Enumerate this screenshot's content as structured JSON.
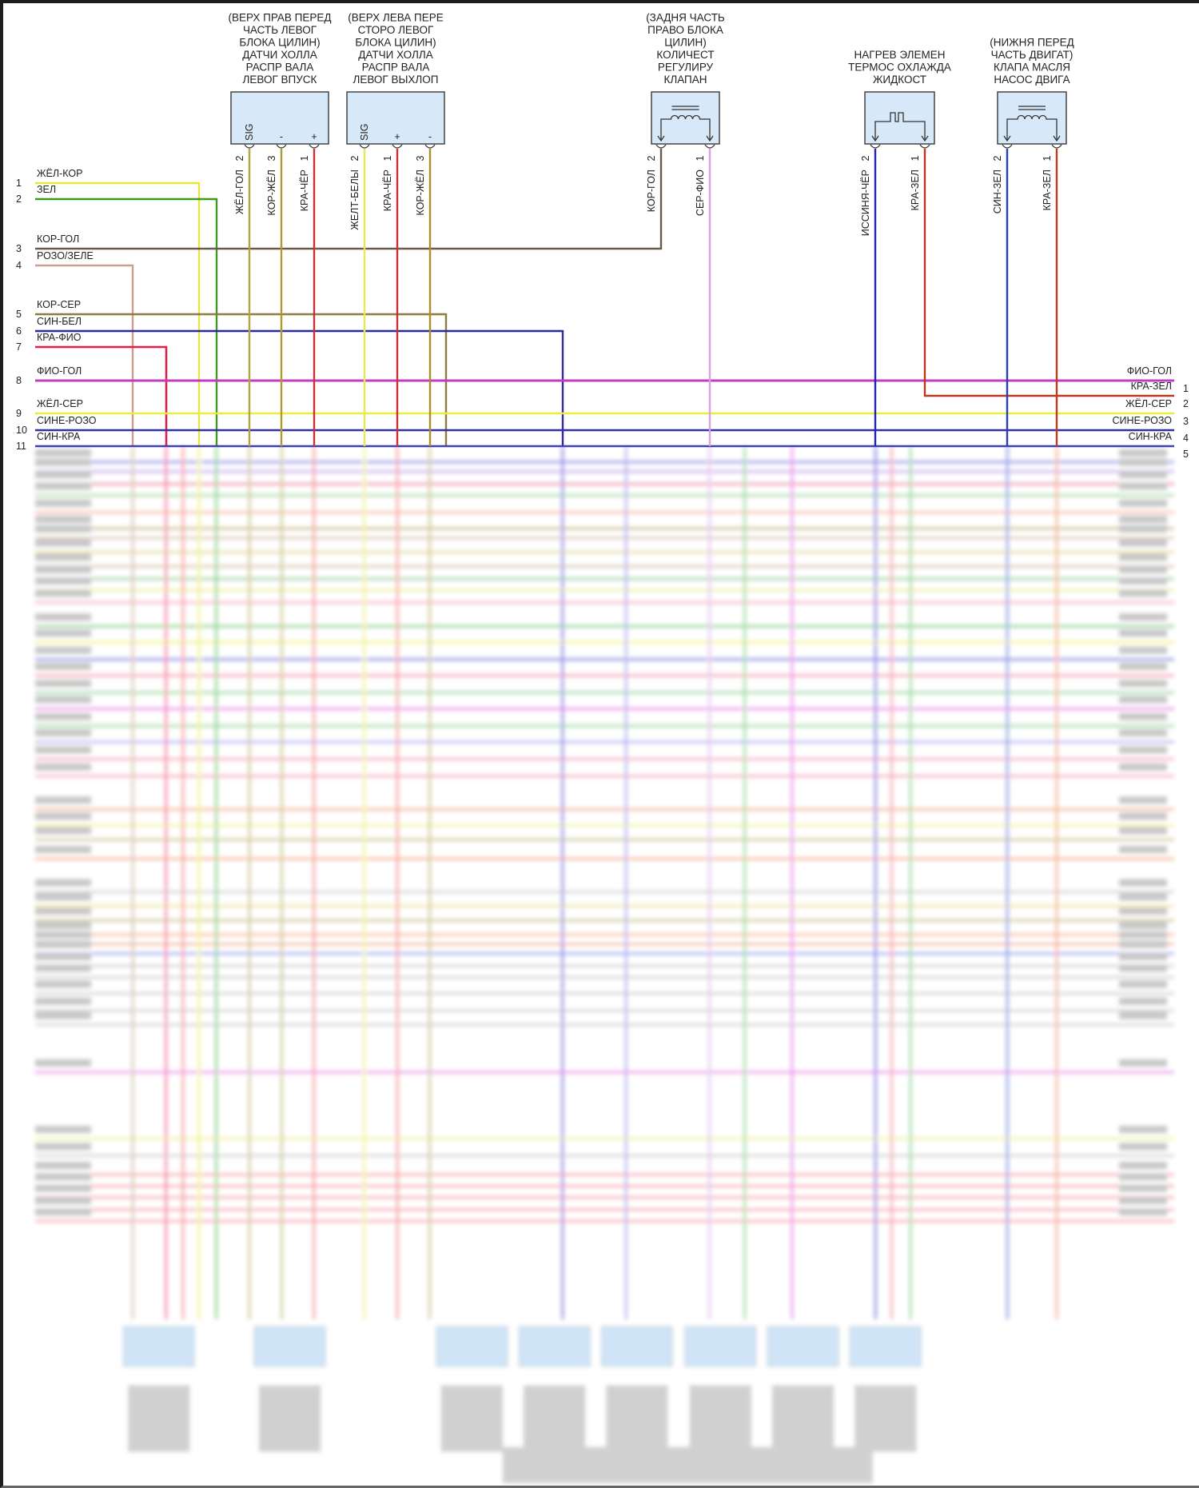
{
  "connectors": [
    {
      "id": "cam-sensor-left-intake",
      "title_lines": [
        "(ВЕРХ ПРАВ ПЕРЕД",
        "ЧАСТЬ ЛЕВОГ",
        "БЛОКА ЦИЛИН)",
        "ДАТЧИ ХОЛЛА",
        "РАСПР ВАЛА",
        "ЛЕВОГ ВПУСК"
      ],
      "symbol": "hall-sensor",
      "pins": [
        {
          "pin": "2",
          "func": "SIG",
          "wire": "ЖЁЛ-ГОЛ",
          "color": "#b3a43c"
        },
        {
          "pin": "3",
          "func": "-",
          "wire": "КОР-ЖЁЛ",
          "color": "#b09a2a"
        },
        {
          "pin": "1",
          "func": "+",
          "wire": "КРА-ЧЁР",
          "color": "#c83232"
        }
      ]
    },
    {
      "id": "cam-sensor-left-exhaust",
      "title_lines": [
        "(ВЕРХ ЛЕВА ПЕРЕ",
        "СТОРО ЛЕВОГ",
        "БЛОКА ЦИЛИН)",
        "ДАТЧИ ХОЛЛА",
        "РАСПР ВАЛА",
        "ЛЕВОГ ВЫХЛОП"
      ],
      "symbol": "hall-sensor",
      "pins": [
        {
          "pin": "2",
          "func": "SIG",
          "wire": "ЖЕЛТ-БЕЛЫ",
          "color": "#e8e850"
        },
        {
          "pin": "1",
          "func": "+",
          "wire": "КРА-ЧЁР",
          "color": "#c83232"
        },
        {
          "pin": "3",
          "func": "-",
          "wire": "КОР-ЖЁЛ",
          "color": "#a8902c"
        }
      ]
    },
    {
      "id": "volume-control-valve",
      "title_lines": [
        "(ЗАДНЯ ЧАСТЬ",
        "ПРАВО БЛОКА",
        "ЦИЛИН)",
        "КОЛИЧЕСТ",
        "РЕГУЛИРУ",
        "КЛАПАН"
      ],
      "symbol": "solenoid-coil",
      "pins": [
        {
          "pin": "2",
          "func": "",
          "wire": "КОР-ГОЛ",
          "color": "#6b5a48"
        },
        {
          "pin": "1",
          "func": "",
          "wire": "СЕР-ФИО",
          "color": "#d8a2e2"
        }
      ]
    },
    {
      "id": "thermostat-heater",
      "title_lines": [
        "НАГРЕВ ЭЛЕМЕН",
        "ТЕРМОС ОХЛАЖДА",
        "ЖИДКОСТ"
      ],
      "symbol": "heater-element",
      "pins": [
        {
          "pin": "2",
          "func": "",
          "wire": "ИССИНЯ-ЧЁР",
          "color": "#2424b0"
        },
        {
          "pin": "1",
          "func": "",
          "wire": "КРА-ЗЕЛ",
          "color": "#b83a1c"
        }
      ]
    },
    {
      "id": "oil-pump-valve",
      "title_lines": [
        "(НИЖНЯ ПЕРЕД",
        "ЧАСТЬ ДВИГАТ)",
        "КЛАПА МАСЛЯ",
        "НАСОС ДВИГА"
      ],
      "symbol": "solenoid-coil",
      "pins": [
        {
          "pin": "2",
          "func": "",
          "wire": "СИН-ЗЕЛ",
          "color": "#2a40b0"
        },
        {
          "pin": "1",
          "func": "",
          "wire": "КРА-ЗЕЛ",
          "color": "#c03a1c"
        }
      ]
    }
  ],
  "left_rows": [
    {
      "num": "1",
      "label": "ЖЁЛ-КОР",
      "color": "#e6e63c"
    },
    {
      "num": "2",
      "label": "ЗЕЛ",
      "color": "#3c9a1c"
    },
    {
      "num": "3",
      "label": "КОР-ГОЛ",
      "color": "#6b5a48"
    },
    {
      "num": "4",
      "label": "РОЗО/ЗЕЛЕ",
      "color": "#c9a08c"
    },
    {
      "num": "5",
      "label": "КОР-СЕР",
      "color": "#8c7c44"
    },
    {
      "num": "6",
      "label": "СИН-БЕЛ",
      "color": "#2a2a9a"
    },
    {
      "num": "7",
      "label": "КРА-ФИО",
      "color": "#e0204a"
    },
    {
      "num": "8",
      "label": "ФИО-ГОЛ",
      "color": "#c03cc0"
    },
    {
      "num": "9",
      "label": "ЖЁЛ-СЕР",
      "color": "#ecec40"
    },
    {
      "num": "10",
      "label": "СИНЕ-РОЗО",
      "color": "#3030a0"
    },
    {
      "num": "11",
      "label": "СИН-КРА",
      "color": "#4040b0"
    }
  ],
  "right_rows": [
    {
      "num": "1",
      "label": "ФИО-ГОЛ"
    },
    {
      "num": "2",
      "label": "КРА-ЗЕЛ"
    },
    {
      "num": "3",
      "label": "ЖЁЛ-СЕР"
    },
    {
      "num": "4",
      "label": "СИНЕ-РОЗО"
    },
    {
      "num": "5",
      "label": "СИН-КРА"
    }
  ]
}
